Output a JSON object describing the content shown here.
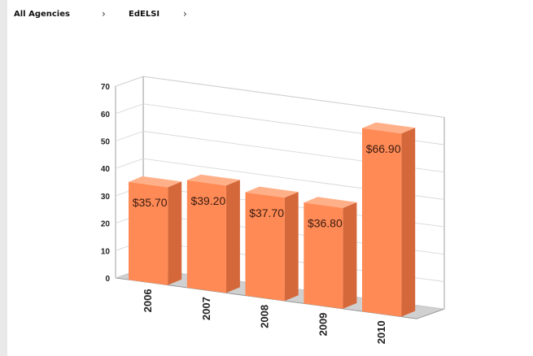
{
  "breadcrumb": {
    "items": [
      "All Agencies",
      "EdELSI"
    ],
    "separator": "›"
  },
  "colors": {
    "bar_front": "#ff8a55",
    "bar_top": "#ffb089",
    "bar_side": "#d5683a",
    "wall": "#ffffff",
    "floor": "#d0d0d0",
    "grid": "#d8d8d8",
    "axis": "#888888"
  },
  "chart_data": {
    "type": "bar",
    "categories": [
      "2006",
      "2007",
      "2008",
      "2009",
      "2010"
    ],
    "values": [
      35.7,
      39.2,
      37.7,
      36.8,
      66.9
    ],
    "data_labels": [
      "$35.70",
      "$39.20",
      "$37.70",
      "$36.80",
      "$66.90"
    ],
    "yticks": [
      "0",
      "10",
      "20",
      "30",
      "40",
      "50",
      "60",
      "70"
    ],
    "ylim": [
      0,
      70
    ],
    "grid": true,
    "legend": "none",
    "style": "3d",
    "title": "",
    "xlabel": "",
    "ylabel": ""
  }
}
